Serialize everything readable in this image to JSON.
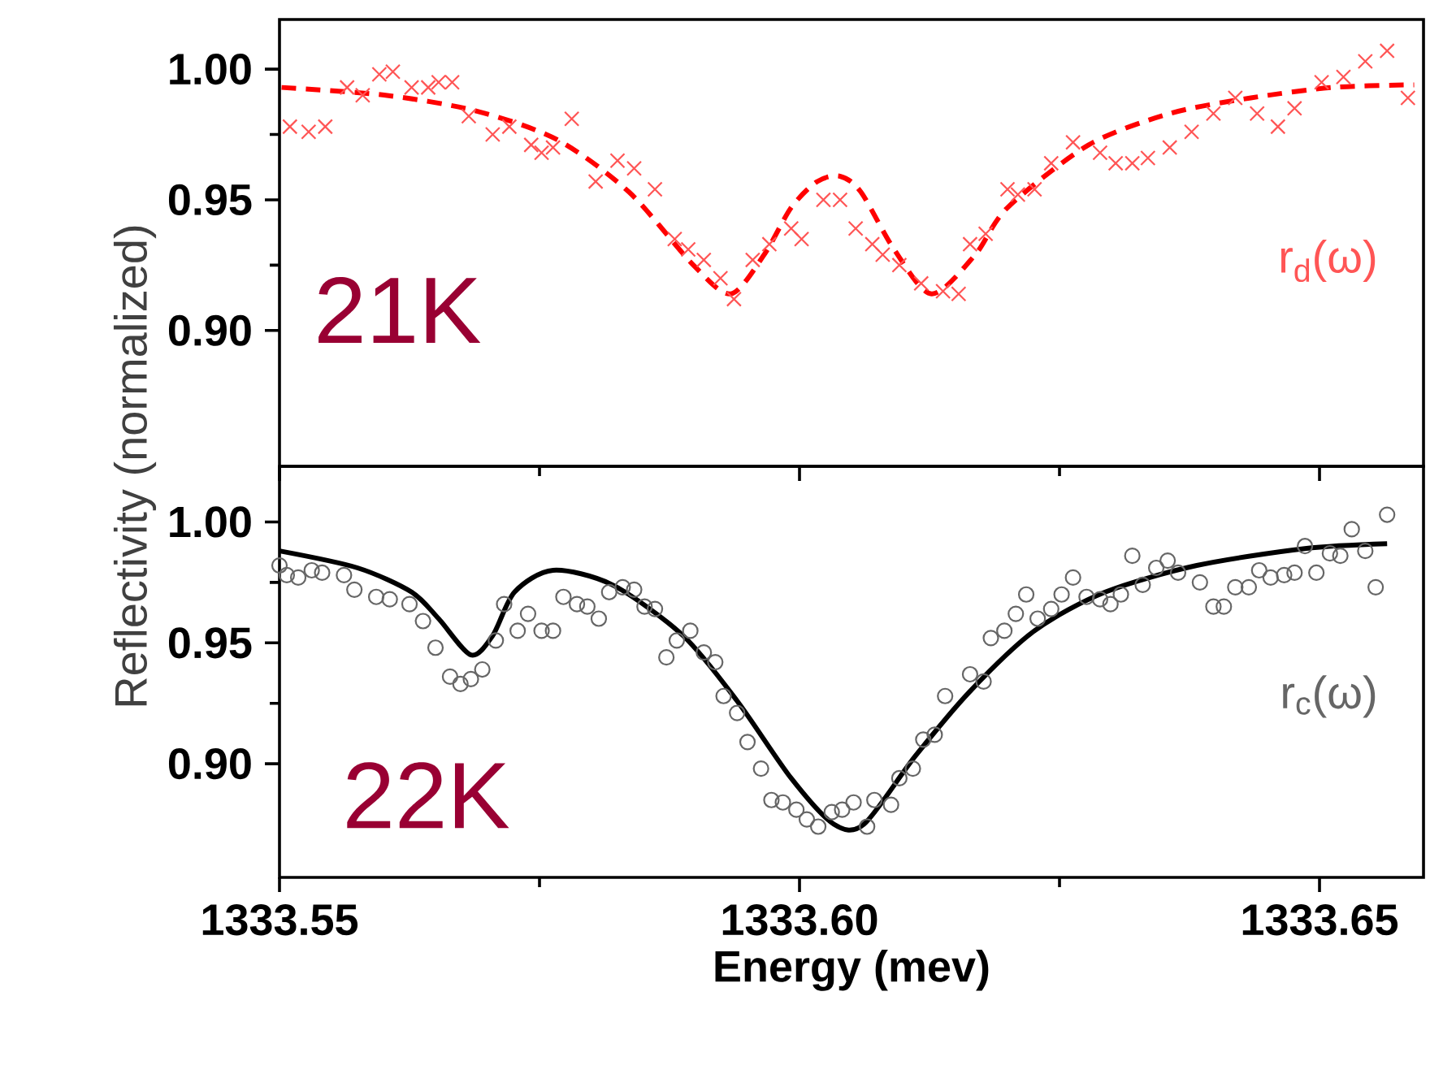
{
  "chart_data": [
    {
      "type": "line",
      "xlim": [
        1333.55,
        1333.66
      ],
      "ylim": [
        0.848,
        1.019
      ],
      "xticks": [
        {
          "value": 1333.55,
          "label": null
        },
        {
          "value": 1333.6,
          "label": null
        },
        {
          "value": 1333.65,
          "label": null
        }
      ],
      "yticks": [
        {
          "value": 0.9,
          "label": "0.90"
        },
        {
          "value": 0.95,
          "label": "0.95"
        },
        {
          "value": 1.0,
          "label": "1.00"
        }
      ],
      "tick_labels": "y",
      "annotations": [
        "21K"
      ],
      "series": [
        {
          "color": "#ff0000",
          "line_style": "dashed",
          "marker": "none",
          "x": [
            1333.5502,
            1333.5602,
            1333.5689,
            1333.5767,
            1333.5836,
            1333.5898,
            1333.5934,
            1333.5966,
            1333.5992,
            1333.6017,
            1333.6039,
            1333.6059,
            1333.6091,
            1333.6127,
            1333.6169,
            1333.62,
            1333.6278,
            1333.6356,
            1333.6434,
            1333.6513,
            1333.6591
          ],
          "values": [
            0.993,
            0.99,
            0.984,
            0.973,
            0.953,
            0.925,
            0.914,
            0.929,
            0.947,
            0.957,
            0.959,
            0.953,
            0.931,
            0.914,
            0.929,
            0.947,
            0.971,
            0.983,
            0.989,
            0.993,
            0.994
          ]
        },
        {
          "type": "scatter",
          "name": "r$_{d}$(ω)",
          "color": "#ff5555",
          "marker": "cross",
          "x": [
            1333.551,
            1333.5528,
            1333.5544,
            1333.5565,
            1333.558,
            1333.5596,
            1333.5609,
            1333.5627,
            1333.5643,
            1333.5653,
            1333.5666,
            1333.5682,
            1333.5705,
            1333.5721,
            1333.5742,
            1333.5752,
            1333.5763,
            1333.5781,
            1333.5804,
            1333.5825,
            1333.5841,
            1333.5861,
            1333.588,
            1333.5893,
            1333.5908,
            1333.5924,
            1333.5937,
            1333.5955,
            1333.5971,
            1333.5992,
            1333.6002,
            1333.6023,
            1333.6039,
            1333.6054,
            1333.607,
            1333.608,
            1333.6096,
            1333.6117,
            1333.6138,
            1333.6153,
            1333.6164,
            1333.6179,
            1333.62,
            1333.621,
            1333.6226,
            1333.6242,
            1333.6263,
            1333.6289,
            1333.6304,
            1333.632,
            1333.6335,
            1333.6356,
            1333.6377,
            1333.6398,
            1333.6419,
            1333.644,
            1333.646,
            1333.6476,
            1333.6502,
            1333.6523,
            1333.6544,
            1333.6565,
            1333.6585
          ],
          "values": [
            0.978,
            0.976,
            0.978,
            0.993,
            0.99,
            0.998,
            0.999,
            0.993,
            0.993,
            0.995,
            0.995,
            0.982,
            0.975,
            0.978,
            0.971,
            0.968,
            0.97,
            0.981,
            0.957,
            0.965,
            0.962,
            0.954,
            0.935,
            0.931,
            0.927,
            0.92,
            0.912,
            0.927,
            0.933,
            0.939,
            0.935,
            0.95,
            0.95,
            0.939,
            0.933,
            0.929,
            0.925,
            0.918,
            0.915,
            0.914,
            0.933,
            0.937,
            0.954,
            0.952,
            0.954,
            0.964,
            0.972,
            0.968,
            0.964,
            0.964,
            0.966,
            0.97,
            0.976,
            0.983,
            0.989,
            0.983,
            0.978,
            0.985,
            0.995,
            0.997,
            1.003,
            1.007,
            0.989
          ]
        }
      ]
    },
    {
      "type": "line",
      "xlim": [
        1333.55,
        1333.66
      ],
      "ylim": [
        0.853,
        1.023
      ],
      "xticks": [
        {
          "value": 1333.55,
          "label": "1333.55"
        },
        {
          "value": 1333.6,
          "label": "1333.60"
        },
        {
          "value": 1333.65,
          "label": "1333.65"
        }
      ],
      "yticks": [
        {
          "value": 0.9,
          "label": "0.90"
        },
        {
          "value": 0.95,
          "label": "0.95"
        },
        {
          "value": 1.0,
          "label": "1.00"
        }
      ],
      "xlabel": "Energy (mev)",
      "ylabel": "Reflectivity (normalized)",
      "annotations": [
        "22K"
      ],
      "series": [
        {
          "color": "#000000",
          "line_style": "solid",
          "marker": "none",
          "x": [
            1333.55,
            1333.5575,
            1333.5627,
            1333.5653,
            1333.5684,
            1333.5705,
            1333.5726,
            1333.5763,
            1333.582,
            1333.5888,
            1333.594,
            1333.5992,
            1333.6033,
            1333.6062,
            1333.6111,
            1333.6164,
            1333.6226,
            1333.6294,
            1333.6382,
            1333.6486,
            1333.6565
          ],
          "values": [
            0.988,
            0.981,
            0.971,
            0.96,
            0.945,
            0.953,
            0.971,
            0.98,
            0.974,
            0.953,
            0.926,
            0.894,
            0.875,
            0.875,
            0.903,
            0.93,
            0.955,
            0.971,
            0.982,
            0.989,
            0.991
          ]
        },
        {
          "type": "scatter",
          "name": "r$_{c}$(ω)",
          "color": "#666666",
          "marker": "circle",
          "x": [
            1333.55,
            1333.5507,
            1333.5518,
            1333.5531,
            1333.5541,
            1333.5562,
            1333.5572,
            1333.5593,
            1333.5606,
            1333.5625,
            1333.5638,
            1333.565,
            1333.5664,
            1333.5674,
            1333.5684,
            1333.5695,
            1333.5708,
            1333.5716,
            1333.5729,
            1333.5739,
            1333.5752,
            1333.5763,
            1333.5773,
            1333.5786,
            1333.5796,
            1333.5807,
            1333.5817,
            1333.583,
            1333.5841,
            1333.5851,
            1333.5861,
            1333.5872,
            1333.5882,
            1333.5895,
            1333.5908,
            1333.5919,
            1333.5927,
            1333.594,
            1333.595,
            1333.5963,
            1333.5973,
            1333.5984,
            1333.5997,
            1333.6007,
            1333.6018,
            1333.6031,
            1333.6041,
            1333.6052,
            1333.6065,
            1333.6072,
            1333.6088,
            1333.6096,
            1333.6109,
            1333.6119,
            1333.613,
            1333.614,
            1333.6164,
            1333.6177,
            1333.6184,
            1333.6197,
            1333.6208,
            1333.6218,
            1333.6229,
            1333.6242,
            1333.6252,
            1333.6263,
            1333.6276,
            1333.6289,
            1333.6299,
            1333.6309,
            1333.632,
            1333.633,
            1333.6343,
            1333.6354,
            1333.6364,
            1333.6385,
            1333.6398,
            1333.6408,
            1333.6419,
            1333.6432,
            1333.6442,
            1333.6453,
            1333.6466,
            1333.6476,
            1333.6486,
            1333.6497,
            1333.651,
            1333.652,
            1333.6531,
            1333.6544,
            1333.6554,
            1333.6565
          ],
          "values": [
            0.982,
            0.978,
            0.977,
            0.98,
            0.979,
            0.978,
            0.972,
            0.969,
            0.968,
            0.966,
            0.959,
            0.948,
            0.936,
            0.933,
            0.935,
            0.939,
            0.951,
            0.966,
            0.955,
            0.962,
            0.955,
            0.955,
            0.969,
            0.966,
            0.965,
            0.96,
            0.971,
            0.973,
            0.972,
            0.965,
            0.964,
            0.944,
            0.951,
            0.955,
            0.946,
            0.942,
            0.928,
            0.921,
            0.909,
            0.898,
            0.885,
            0.884,
            0.881,
            0.877,
            0.874,
            0.88,
            0.881,
            0.884,
            0.874,
            0.885,
            0.883,
            0.894,
            0.898,
            0.91,
            0.912,
            0.928,
            0.937,
            0.934,
            0.952,
            0.955,
            0.962,
            0.97,
            0.96,
            0.964,
            0.97,
            0.977,
            0.969,
            0.968,
            0.966,
            0.97,
            0.986,
            0.974,
            0.981,
            0.984,
            0.979,
            0.975,
            0.965,
            0.965,
            0.973,
            0.973,
            0.98,
            0.977,
            0.978,
            0.979,
            0.99,
            0.979,
            0.987,
            0.986,
            0.997,
            0.988,
            0.973,
            1.003
          ]
        }
      ]
    }
  ]
}
